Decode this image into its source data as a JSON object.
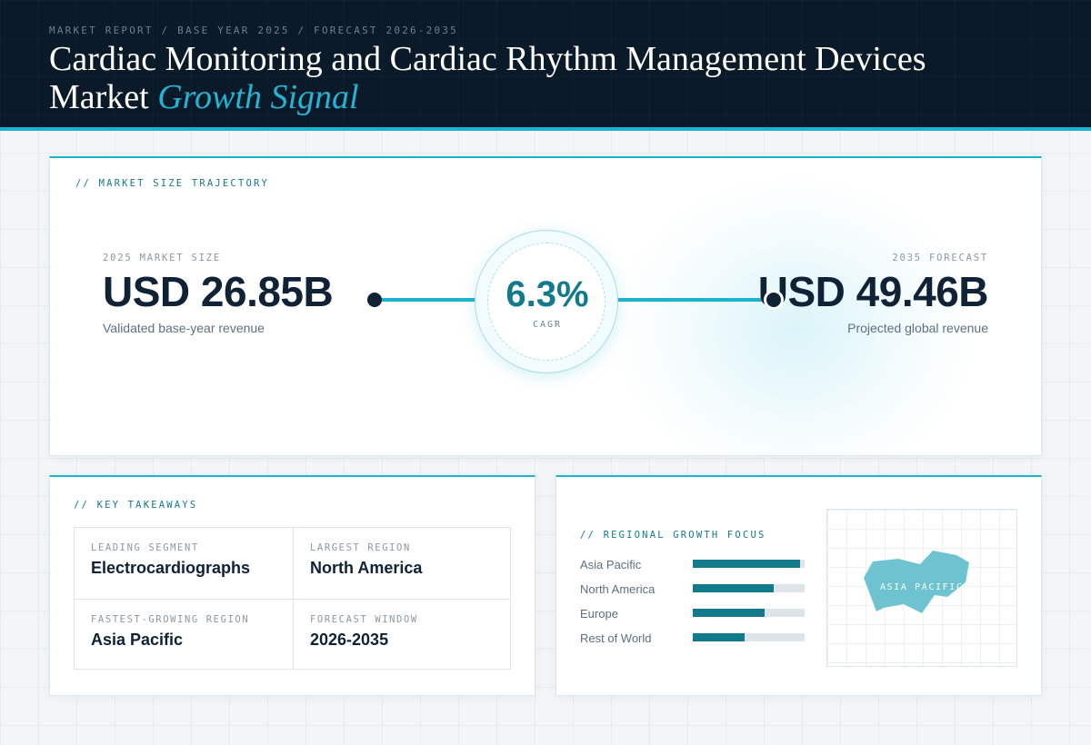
{
  "header": {
    "eyebrow": "MARKET REPORT / BASE YEAR 2025 / FORECAST 2026-2035",
    "title_main": "Cardiac Monitoring and Cardiac Rhythm Management Devices Market",
    "title_accent": "Growth Signal"
  },
  "trajectory": {
    "section_label": "// MARKET SIZE TRAJECTORY",
    "start": {
      "label": "2025 MARKET SIZE",
      "value": "USD 26.85B",
      "caption": "Validated base-year revenue"
    },
    "cagr": {
      "value": "6.3%",
      "label": "CAGR"
    },
    "end": {
      "label": "2035 FORECAST",
      "value": "USD 49.46B",
      "caption": "Projected global revenue"
    }
  },
  "takeaways": {
    "section_label": "// KEY TAKEAWAYS",
    "items": [
      {
        "label": "LEADING SEGMENT",
        "value": "Electrocardiographs"
      },
      {
        "label": "LARGEST REGION",
        "value": "North America"
      },
      {
        "label": "FASTEST-GROWING REGION",
        "value": "Asia Pacific"
      },
      {
        "label": "FORECAST WINDOW",
        "value": "2026-2035"
      }
    ]
  },
  "regional": {
    "section_label": "// REGIONAL GROWTH FOCUS",
    "rows": [
      {
        "name": "Asia Pacific",
        "level": 0.96
      },
      {
        "name": "North America",
        "level": 0.72
      },
      {
        "name": "Europe",
        "level": 0.64
      },
      {
        "name": "Rest of World",
        "level": 0.46
      }
    ],
    "map_label": "ASIA PACIFIC"
  },
  "colors": {
    "accent": "#1bb4d0",
    "accent_dark": "#137a8c",
    "navy": "#0b1a28",
    "map_fill": "#6ec3d1"
  }
}
